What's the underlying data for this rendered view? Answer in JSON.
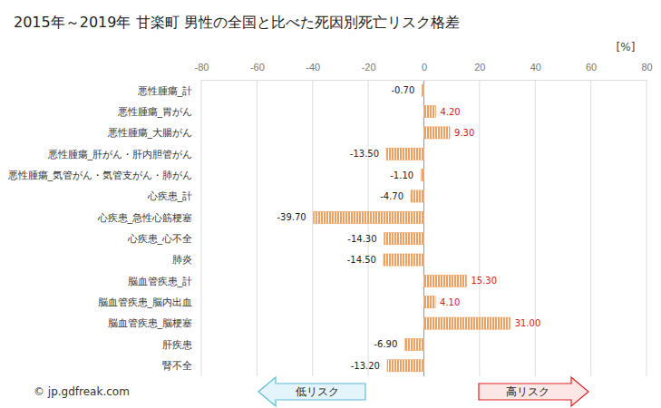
{
  "chart_data": {
    "type": "bar",
    "orientation": "horizontal",
    "title": "2015年～2019年 甘楽町 男性の全国と比べた死因別死亡リスク格差",
    "x_label": "[%]",
    "annotations": [
      "© jp.gdfreak.com",
      "低リスク",
      "高リスク"
    ],
    "categories": [
      "悪性腫瘍_計",
      "悪性腫瘍_胃がん",
      "悪性腫瘍_大腸がん",
      "悪性腫瘍_肝がん・肝内胆管がん",
      "悪性腫瘍_気管がん・気管支がん・肺がん",
      "心疾患_計",
      "心疾患_急性心筋梗塞",
      "心疾患_心不全",
      "肺炎",
      "脳血管疾患_計",
      "脳血管疾患_脳内出血",
      "脳血管疾患_脳梗塞",
      "肝疾患",
      "腎不全"
    ],
    "values": [
      -0.7,
      4.2,
      9.3,
      -13.5,
      -1.1,
      -4.7,
      -39.7,
      -14.3,
      -14.5,
      15.3,
      4.1,
      31.0,
      -6.9,
      -13.2
    ],
    "value_labels": [
      "-0.70",
      "4.20",
      "9.30",
      "-13.50",
      "-1.10",
      "-4.70",
      "-39.70",
      "-14.30",
      "-14.50",
      "15.30",
      "4.10",
      "31.00",
      "-6.90",
      "-13.20"
    ],
    "data_labels": true,
    "color": "#f0a060",
    "xlim": [
      -80,
      80
    ],
    "xticks": [
      -80,
      -60,
      -40,
      -20,
      0,
      20,
      40,
      60,
      80
    ],
    "grid": true
  }
}
